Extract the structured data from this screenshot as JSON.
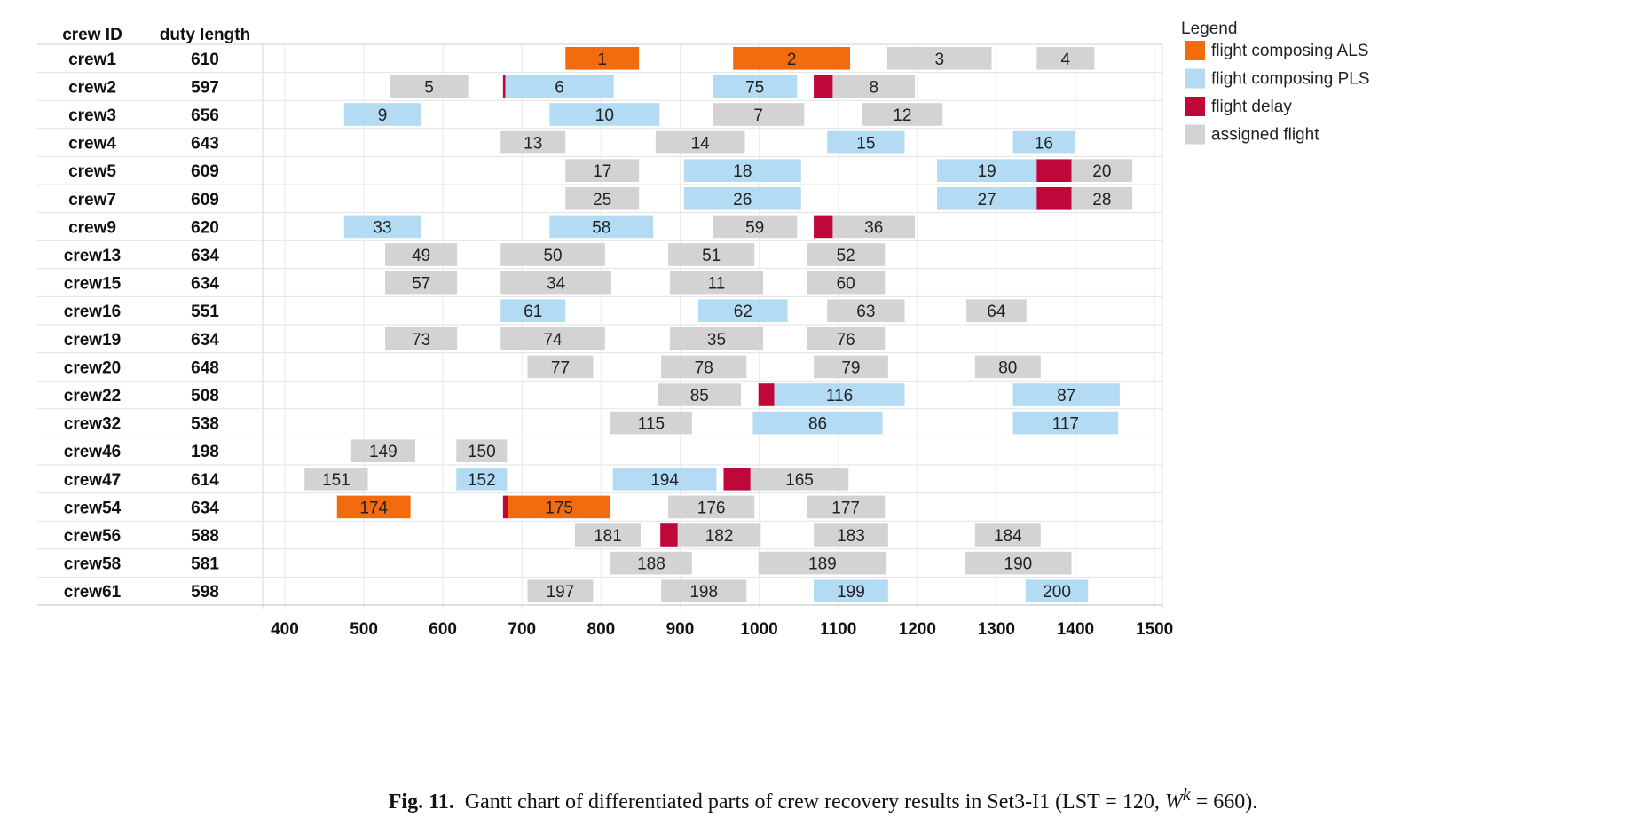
{
  "chart_data": {
    "type": "gantt",
    "columns": {
      "crew": "crew ID",
      "duty": "duty length"
    },
    "x_ticks": [
      400,
      500,
      600,
      700,
      800,
      900,
      1000,
      1100,
      1200,
      1300,
      1400,
      1500
    ],
    "xlim": [
      372,
      1510
    ],
    "grid": "vertical",
    "legend": {
      "title": "Legend",
      "placement": "right",
      "items": [
        {
          "key": "ALS",
          "label": "flight composing ALS"
        },
        {
          "key": "PLS",
          "label": "flight composing PLS"
        },
        {
          "key": "DLY",
          "label": "flight delay"
        },
        {
          "key": "ASG",
          "label": "assigned flight"
        }
      ]
    },
    "colors": {
      "ALS": "#f26b0f",
      "PLS": "#b3dbf3",
      "DLY": "#c0073a",
      "ASG": "#d3d3d3"
    },
    "rows": [
      {
        "crew": "crew1",
        "duty": "610",
        "bars": [
          {
            "s": 755,
            "e": 848,
            "t": "ALS",
            "l": "1"
          },
          {
            "s": 967,
            "e": 1115,
            "t": "ALS",
            "l": "2"
          },
          {
            "s": 1162,
            "e": 1294,
            "t": "ASG",
            "l": "3"
          },
          {
            "s": 1351,
            "e": 1424,
            "t": "ASG",
            "l": "4"
          }
        ]
      },
      {
        "crew": "crew2",
        "duty": "597",
        "bars": [
          {
            "s": 533,
            "e": 632,
            "t": "ASG",
            "l": "5"
          },
          {
            "s": 676,
            "e": 679,
            "t": "DLY",
            "l": ""
          },
          {
            "s": 679,
            "e": 816,
            "t": "PLS",
            "l": "6"
          },
          {
            "s": 941,
            "e": 1048,
            "t": "PLS",
            "l": "75"
          },
          {
            "s": 1069,
            "e": 1093,
            "t": "DLY",
            "l": ""
          },
          {
            "s": 1093,
            "e": 1197,
            "t": "ASG",
            "l": "8"
          }
        ]
      },
      {
        "crew": "crew3",
        "duty": "656",
        "bars": [
          {
            "s": 475,
            "e": 572,
            "t": "PLS",
            "l": "9"
          },
          {
            "s": 735,
            "e": 874,
            "t": "PLS",
            "l": "10"
          },
          {
            "s": 941,
            "e": 1057,
            "t": "ASG",
            "l": "7"
          },
          {
            "s": 1130,
            "e": 1232,
            "t": "ASG",
            "l": "12"
          }
        ]
      },
      {
        "crew": "crew4",
        "duty": "643",
        "bars": [
          {
            "s": 673,
            "e": 755,
            "t": "ASG",
            "l": "13"
          },
          {
            "s": 869,
            "e": 982,
            "t": "ASG",
            "l": "14"
          },
          {
            "s": 1086,
            "e": 1184,
            "t": "PLS",
            "l": "15"
          },
          {
            "s": 1321,
            "e": 1399,
            "t": "PLS",
            "l": "16"
          }
        ]
      },
      {
        "crew": "crew5",
        "duty": "609",
        "bars": [
          {
            "s": 755,
            "e": 848,
            "t": "ASG",
            "l": "17"
          },
          {
            "s": 905,
            "e": 1053,
            "t": "PLS",
            "l": "18"
          },
          {
            "s": 1225,
            "e": 1351,
            "t": "PLS",
            "l": "19"
          },
          {
            "s": 1351,
            "e": 1395,
            "t": "DLY",
            "l": ""
          },
          {
            "s": 1395,
            "e": 1472,
            "t": "ASG",
            "l": "20"
          }
        ]
      },
      {
        "crew": "crew7",
        "duty": "609",
        "bars": [
          {
            "s": 755,
            "e": 848,
            "t": "ASG",
            "l": "25"
          },
          {
            "s": 905,
            "e": 1053,
            "t": "PLS",
            "l": "26"
          },
          {
            "s": 1225,
            "e": 1351,
            "t": "PLS",
            "l": "27"
          },
          {
            "s": 1351,
            "e": 1395,
            "t": "DLY",
            "l": ""
          },
          {
            "s": 1395,
            "e": 1472,
            "t": "ASG",
            "l": "28"
          }
        ]
      },
      {
        "crew": "crew9",
        "duty": "620",
        "bars": [
          {
            "s": 475,
            "e": 572,
            "t": "PLS",
            "l": "33"
          },
          {
            "s": 735,
            "e": 866,
            "t": "PLS",
            "l": "58"
          },
          {
            "s": 941,
            "e": 1048,
            "t": "ASG",
            "l": "59"
          },
          {
            "s": 1069,
            "e": 1093,
            "t": "DLY",
            "l": ""
          },
          {
            "s": 1093,
            "e": 1197,
            "t": "ASG",
            "l": "36"
          }
        ]
      },
      {
        "crew": "crew13",
        "duty": "634",
        "bars": [
          {
            "s": 527,
            "e": 618,
            "t": "ASG",
            "l": "49"
          },
          {
            "s": 673,
            "e": 805,
            "t": "ASG",
            "l": "50"
          },
          {
            "s": 885,
            "e": 994,
            "t": "ASG",
            "l": "51"
          },
          {
            "s": 1060,
            "e": 1159,
            "t": "ASG",
            "l": "52"
          }
        ]
      },
      {
        "crew": "crew15",
        "duty": "634",
        "bars": [
          {
            "s": 527,
            "e": 618,
            "t": "ASG",
            "l": "57"
          },
          {
            "s": 673,
            "e": 813,
            "t": "ASG",
            "l": "34"
          },
          {
            "s": 887,
            "e": 1005,
            "t": "ASG",
            "l": "11"
          },
          {
            "s": 1060,
            "e": 1159,
            "t": "ASG",
            "l": "60"
          }
        ]
      },
      {
        "crew": "crew16",
        "duty": "551",
        "bars": [
          {
            "s": 673,
            "e": 755,
            "t": "PLS",
            "l": "61"
          },
          {
            "s": 923,
            "e": 1036,
            "t": "PLS",
            "l": "62"
          },
          {
            "s": 1086,
            "e": 1184,
            "t": "ASG",
            "l": "63"
          },
          {
            "s": 1262,
            "e": 1338,
            "t": "ASG",
            "l": "64"
          }
        ]
      },
      {
        "crew": "crew19",
        "duty": "634",
        "bars": [
          {
            "s": 527,
            "e": 618,
            "t": "ASG",
            "l": "73"
          },
          {
            "s": 673,
            "e": 805,
            "t": "ASG",
            "l": "74"
          },
          {
            "s": 887,
            "e": 1005,
            "t": "ASG",
            "l": "35"
          },
          {
            "s": 1060,
            "e": 1159,
            "t": "ASG",
            "l": "76"
          }
        ]
      },
      {
        "crew": "crew20",
        "duty": "648",
        "bars": [
          {
            "s": 707,
            "e": 790,
            "t": "ASG",
            "l": "77"
          },
          {
            "s": 876,
            "e": 984,
            "t": "ASG",
            "l": "78"
          },
          {
            "s": 1069,
            "e": 1163,
            "t": "ASG",
            "l": "79"
          },
          {
            "s": 1273,
            "e": 1356,
            "t": "ASG",
            "l": "80"
          }
        ]
      },
      {
        "crew": "crew22",
        "duty": "508",
        "bars": [
          {
            "s": 872,
            "e": 977,
            "t": "ASG",
            "l": "85"
          },
          {
            "s": 999,
            "e": 1019,
            "t": "DLY",
            "l": ""
          },
          {
            "s": 1019,
            "e": 1184,
            "t": "PLS",
            "l": "116"
          },
          {
            "s": 1321,
            "e": 1456,
            "t": "PLS",
            "l": "87"
          }
        ]
      },
      {
        "crew": "crew32",
        "duty": "538",
        "bars": [
          {
            "s": 812,
            "e": 915,
            "t": "ASG",
            "l": "115"
          },
          {
            "s": 992,
            "e": 1156,
            "t": "PLS",
            "l": "86"
          },
          {
            "s": 1321,
            "e": 1454,
            "t": "PLS",
            "l": "117"
          }
        ]
      },
      {
        "crew": "crew46",
        "duty": "198",
        "bars": [
          {
            "s": 484,
            "e": 565,
            "t": "ASG",
            "l": "149"
          },
          {
            "s": 617,
            "e": 681,
            "t": "ASG",
            "l": "150"
          }
        ]
      },
      {
        "crew": "crew47",
        "duty": "614",
        "bars": [
          {
            "s": 425,
            "e": 505,
            "t": "ASG",
            "l": "151"
          },
          {
            "s": 617,
            "e": 681,
            "t": "PLS",
            "l": "152"
          },
          {
            "s": 815,
            "e": 946,
            "t": "PLS",
            "l": "194"
          },
          {
            "s": 955,
            "e": 989,
            "t": "DLY",
            "l": ""
          },
          {
            "s": 989,
            "e": 1113,
            "t": "ASG",
            "l": "165"
          }
        ]
      },
      {
        "crew": "crew54",
        "duty": "634",
        "bars": [
          {
            "s": 466,
            "e": 559,
            "t": "ALS",
            "l": "174"
          },
          {
            "s": 676,
            "e": 682,
            "t": "DLY",
            "l": ""
          },
          {
            "s": 682,
            "e": 812,
            "t": "ALS",
            "l": "175"
          },
          {
            "s": 885,
            "e": 994,
            "t": "ASG",
            "l": "176"
          },
          {
            "s": 1060,
            "e": 1159,
            "t": "ASG",
            "l": "177"
          }
        ]
      },
      {
        "crew": "crew56",
        "duty": "588",
        "bars": [
          {
            "s": 767,
            "e": 850,
            "t": "ASG",
            "l": "181"
          },
          {
            "s": 875,
            "e": 897,
            "t": "DLY",
            "l": ""
          },
          {
            "s": 897,
            "e": 1002,
            "t": "ASG",
            "l": "182"
          },
          {
            "s": 1069,
            "e": 1163,
            "t": "ASG",
            "l": "183"
          },
          {
            "s": 1273,
            "e": 1356,
            "t": "ASG",
            "l": "184"
          }
        ]
      },
      {
        "crew": "crew58",
        "duty": "581",
        "bars": [
          {
            "s": 812,
            "e": 915,
            "t": "ASG",
            "l": "188"
          },
          {
            "s": 999,
            "e": 1161,
            "t": "ASG",
            "l": "189"
          },
          {
            "s": 1260,
            "e": 1395,
            "t": "ASG",
            "l": "190"
          }
        ]
      },
      {
        "crew": "crew61",
        "duty": "598",
        "bars": [
          {
            "s": 707,
            "e": 790,
            "t": "ASG",
            "l": "197"
          },
          {
            "s": 876,
            "e": 984,
            "t": "ASG",
            "l": "198"
          },
          {
            "s": 1069,
            "e": 1163,
            "t": "PLS",
            "l": "199"
          },
          {
            "s": 1337,
            "e": 1416,
            "t": "PLS",
            "l": "200"
          }
        ]
      }
    ]
  },
  "caption": {
    "fig_label": "Fig. 11.",
    "text_before": "Gantt chart of differentiated parts of crew recovery results in Set3-I1 (LST = 120, ",
    "w_symbol": "W",
    "w_sup": "k",
    "text_after": " = 660)."
  }
}
